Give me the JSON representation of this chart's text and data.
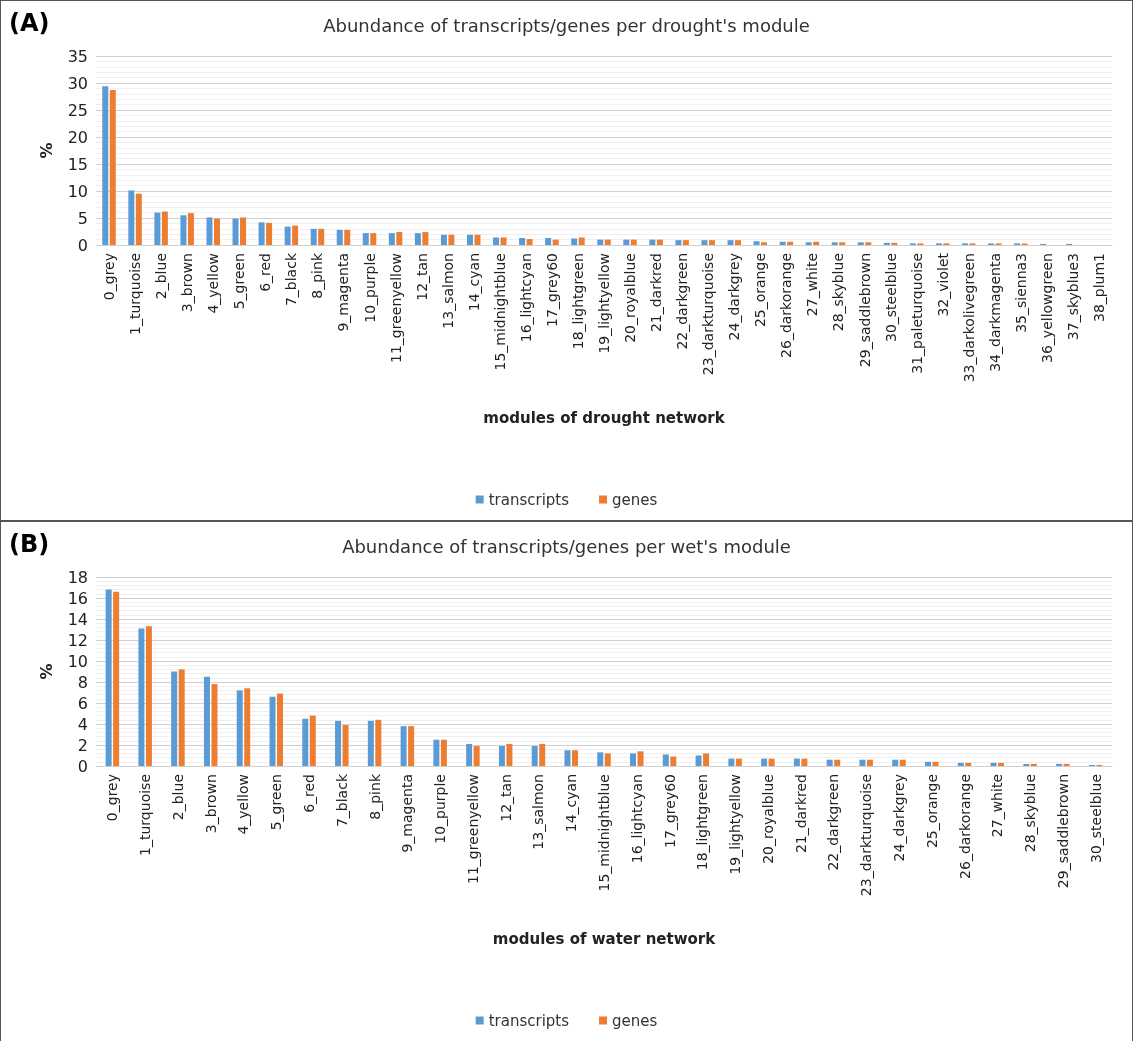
{
  "chart_data": [
    {
      "type": "bar",
      "title": "Abundance of transcripts/genes per drought's module",
      "xlabel": "modules of drought network",
      "ylabel": "%",
      "annotations": [
        "(A)"
      ],
      "categories": [
        "0_grey",
        "1_turquoise",
        "2_blue",
        "3_brown",
        "4_yellow",
        "5_green",
        "6_red",
        "7_black",
        "8_pink",
        "9_magenta",
        "10_purple",
        "11_greenyellow",
        "12_tan",
        "13_salmon",
        "14_cyan",
        "15_midnightblue",
        "16_lightcyan",
        "17_grey60",
        "18_lightgreen",
        "19_lightyellow",
        "20_royalblue",
        "21_darkred",
        "22_darkgreen",
        "23_darkturquoise",
        "24_darkgrey",
        "25_orange",
        "26_darkorange",
        "27_white",
        "28_skyblue",
        "29_saddlebrown",
        "30_steelblue",
        "31_paleturquoise",
        "32_violet",
        "33_darkolivegreen",
        "34_darkmagenta",
        "35_sienna3",
        "36_yellowgreen",
        "37_skyblue3",
        "38_plum1"
      ],
      "series": [
        {
          "name": "transcripts",
          "color": "#5b9bd5",
          "values": [
            29.4,
            10.1,
            6.0,
            5.5,
            5.1,
            4.9,
            4.2,
            3.4,
            3.0,
            2.8,
            2.2,
            2.2,
            2.2,
            1.9,
            1.9,
            1.4,
            1.3,
            1.3,
            1.2,
            1.0,
            1.0,
            1.0,
            0.9,
            0.9,
            0.9,
            0.7,
            0.6,
            0.5,
            0.5,
            0.5,
            0.4,
            0.3,
            0.3,
            0.3,
            0.3,
            0.3,
            0.2,
            0.2,
            0
          ]
        },
        {
          "name": "genes",
          "color": "#ed7d31",
          "values": [
            28.7,
            9.5,
            6.2,
            5.9,
            4.9,
            5.1,
            4.1,
            3.6,
            3.0,
            2.8,
            2.2,
            2.4,
            2.4,
            1.9,
            1.9,
            1.4,
            1.1,
            1.0,
            1.4,
            1.0,
            1.0,
            1.0,
            0.9,
            0.9,
            0.9,
            0.5,
            0.6,
            0.6,
            0.5,
            0.5,
            0.4,
            0.3,
            0.3,
            0.3,
            0.3,
            0.3,
            0,
            0,
            0
          ]
        }
      ],
      "ylim": [
        0,
        35
      ],
      "yticks": [
        0,
        5,
        10,
        15,
        20,
        25,
        30,
        35
      ],
      "grid": "y",
      "legend": "bottom"
    },
    {
      "type": "bar",
      "title": "Abundance of transcripts/genes per wet's module",
      "xlabel": "modules of water network",
      "ylabel": "%",
      "annotations": [
        "(B)"
      ],
      "categories": [
        "0_grey",
        "1_turquoise",
        "2_blue",
        "3_brown",
        "4_yellow",
        "5_green",
        "6_red",
        "7_black",
        "8_pink",
        "9_magenta",
        "10_purple",
        "11_greenyellow",
        "12_tan",
        "13_salmon",
        "14_cyan",
        "15_midnightblue",
        "16_lightcyan",
        "17_grey60",
        "18_lightgreen",
        "19_lightyellow",
        "20_royalblue",
        "21_darkred",
        "22_darkgreen",
        "23_darkturquoise",
        "24_darkgrey",
        "25_orange",
        "26_darkorange",
        "27_white",
        "28_skyblue",
        "29_saddlebrown",
        "30_steelblue"
      ],
      "series": [
        {
          "name": "transcripts",
          "color": "#5b9bd5",
          "values": [
            16.8,
            13.1,
            9.0,
            8.5,
            7.2,
            6.6,
            4.5,
            4.3,
            4.3,
            3.8,
            2.5,
            2.1,
            1.9,
            1.9,
            1.5,
            1.3,
            1.2,
            1.1,
            1.0,
            0.7,
            0.7,
            0.7,
            0.6,
            0.6,
            0.6,
            0.4,
            0.3,
            0.3,
            0.2,
            0.2,
            0.1
          ]
        },
        {
          "name": "genes",
          "color": "#ed7d31",
          "values": [
            16.6,
            13.3,
            9.2,
            7.8,
            7.4,
            6.9,
            4.8,
            3.9,
            4.4,
            3.8,
            2.5,
            1.9,
            2.1,
            2.1,
            1.5,
            1.2,
            1.4,
            0.9,
            1.2,
            0.7,
            0.7,
            0.7,
            0.6,
            0.6,
            0.6,
            0.4,
            0.3,
            0.3,
            0.2,
            0.2,
            0.1
          ]
        }
      ],
      "ylim": [
        0,
        18
      ],
      "yticks": [
        0,
        2,
        4,
        6,
        8,
        10,
        12,
        14,
        16,
        18
      ],
      "grid": "y",
      "legend": "bottom"
    }
  ]
}
